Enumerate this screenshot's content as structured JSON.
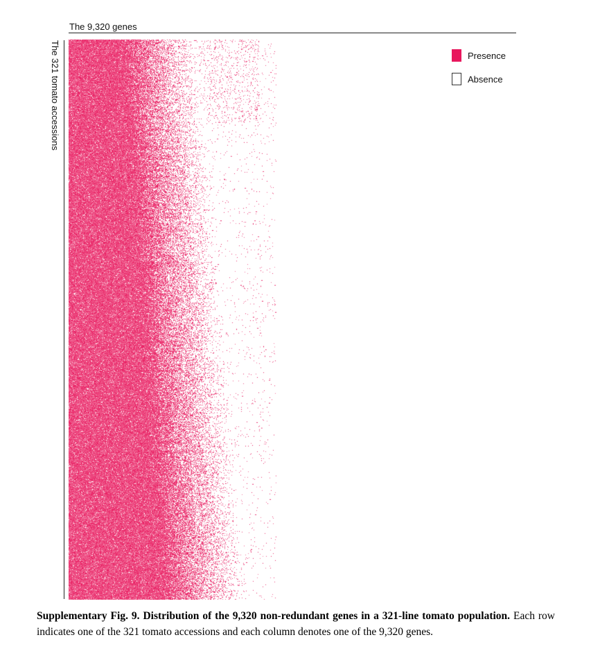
{
  "figure": {
    "top_axis_label": "The 9,320 genes",
    "left_axis_label": "The 321 tomato accessions",
    "legend": [
      {
        "label": "Presence",
        "color": "#e8175d"
      },
      {
        "label": "Absence",
        "color": "#ffffff"
      }
    ]
  },
  "chart_data": {
    "type": "heatmap",
    "rows": 321,
    "columns": 9320,
    "row_label": "The 321 tomato accessions",
    "column_label": "The 9,320 genes",
    "categories": [
      "Presence",
      "Absence"
    ],
    "colors": {
      "Presence": "#e8175d",
      "Absence": "#ffffff"
    },
    "legend_position": "top-right"
  },
  "caption": {
    "title": "Supplementary Fig. 9. Distribution of the 9,320 non-redundant genes in a 321-line tomato population.",
    "body": " Each row indicates one of the 321 tomato accessions and each column denotes one of the 9,320 genes."
  }
}
